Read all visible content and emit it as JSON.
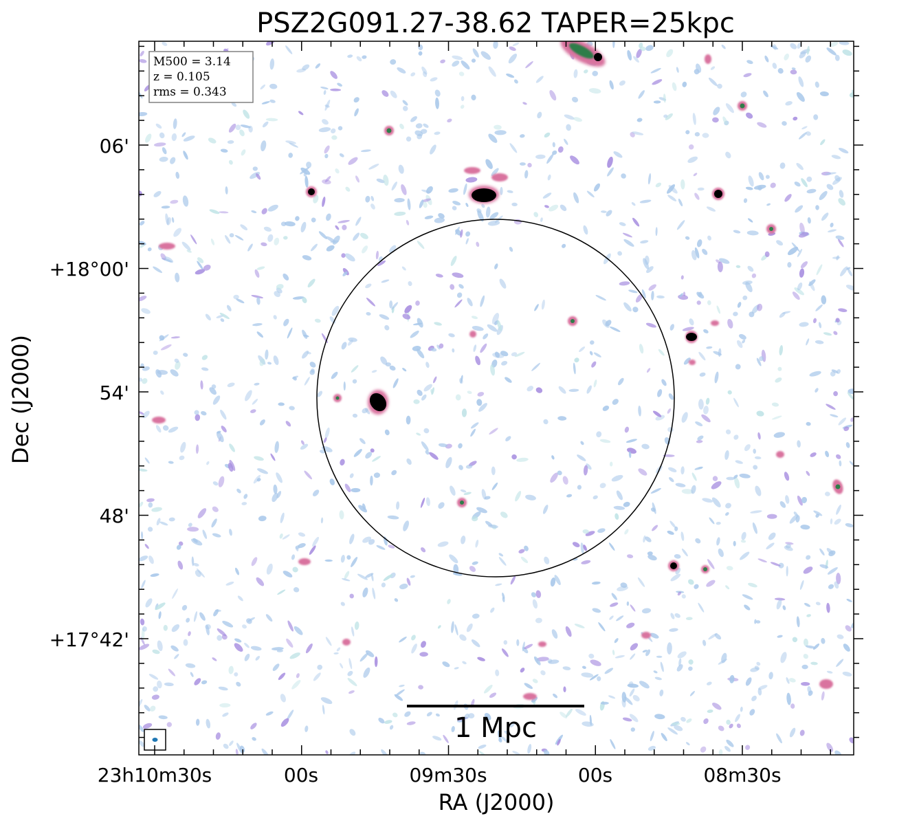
{
  "figure": {
    "title": "PSZ2G091.27-38.62 TAPER=25kpc",
    "xlabel": "RA (J2000)",
    "ylabel": "Dec (J2000)",
    "ra_ticks": [
      "23h10m30s",
      "00s",
      "09m30s",
      "00s",
      "08m30s"
    ],
    "dec_ticks": [
      "06'",
      "+18°00'",
      "54'",
      "48'",
      "+17°42'"
    ],
    "info_box": {
      "line1": "M500 = 3.14",
      "line2": "z = 0.105",
      "line3": "rms = 0.343"
    },
    "scalebar_label": "1 Mpc",
    "colors": {
      "noise_blue": "#a9c8ea",
      "noise_purple": "#a78ee0",
      "source_pink": "#d9739f",
      "source_green": "#2f7d4a",
      "source_core": "#000000",
      "circle": "#000000",
      "beam": "#1f77b4",
      "box_border": "#808080"
    }
  }
}
